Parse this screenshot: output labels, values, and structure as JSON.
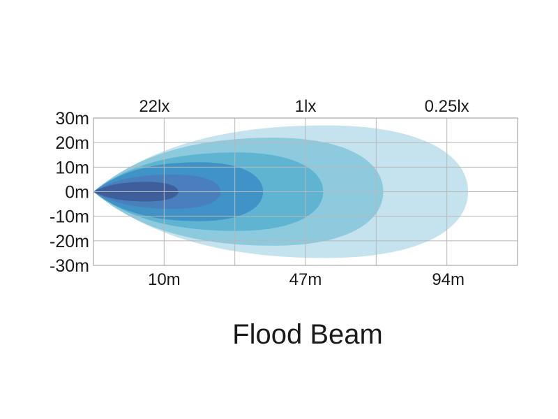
{
  "chart_data": {
    "type": "area",
    "title": "Flood Beam",
    "x_unit": "m",
    "y_unit": "m",
    "ylim": [
      -30,
      30
    ],
    "xlim": [
      0,
      120
    ],
    "grid": true,
    "yticks": [
      {
        "value": 30,
        "label": "30m"
      },
      {
        "value": 20,
        "label": "20m"
      },
      {
        "value": 10,
        "label": "10m"
      },
      {
        "value": 0,
        "label": "0m"
      },
      {
        "value": -10,
        "label": "-10m"
      },
      {
        "value": -20,
        "label": "-20m"
      },
      {
        "value": -30,
        "label": "-30m"
      }
    ],
    "xticks": [
      {
        "value": 20,
        "label": "10m"
      },
      {
        "value": 60,
        "label": "47m"
      },
      {
        "value": 100,
        "label": "94m"
      }
    ],
    "top_labels": [
      {
        "value": 20,
        "label": "22lx"
      },
      {
        "value": 60,
        "label": "1lx"
      },
      {
        "value": 100,
        "label": "0.25lx"
      }
    ],
    "beams": [
      {
        "reach": 106,
        "half_width": 27,
        "color": "#c5e3ee"
      },
      {
        "reach": 82,
        "half_width": 22,
        "color": "#8ecadd"
      },
      {
        "reach": 65,
        "half_width": 16,
        "color": "#5fb5d1"
      },
      {
        "reach": 48,
        "half_width": 12,
        "color": "#3f93c6"
      },
      {
        "reach": 36,
        "half_width": 7,
        "color": "#4a7fbd"
      },
      {
        "reach": 24,
        "half_width": 4,
        "color": "#3f5e9c"
      }
    ]
  }
}
